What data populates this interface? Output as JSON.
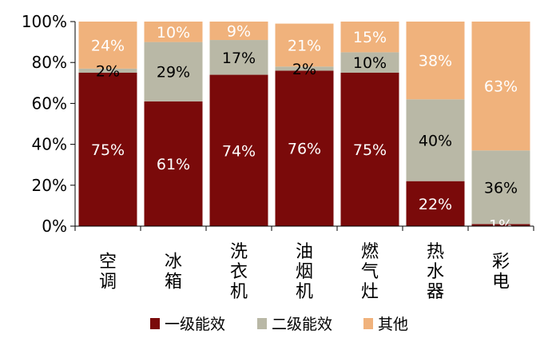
{
  "chart_data": {
    "type": "bar",
    "stacked": true,
    "categories": [
      "空调",
      "冰箱",
      "洗衣机",
      "油烟机",
      "燃气灶",
      "热水器",
      "彩电"
    ],
    "series": [
      {
        "name": "一级能效",
        "values": [
          75,
          61,
          74,
          76,
          75,
          22,
          1
        ],
        "labels": [
          "75%",
          "61%",
          "74%",
          "76%",
          "75%",
          "22%",
          "1%"
        ],
        "color": "#7a0a0a",
        "label_color": "#ffffff"
      },
      {
        "name": "二级能效",
        "values": [
          2,
          29,
          17,
          2,
          10,
          40,
          36
        ],
        "labels": [
          "2%",
          "29%",
          "17%",
          "2%",
          "10%",
          "40%",
          "36%"
        ],
        "color": "#b9b8a6",
        "label_color": "#000000"
      },
      {
        "name": "其他",
        "values": [
          24,
          10,
          9,
          21,
          15,
          38,
          63
        ],
        "labels": [
          "24%",
          "10%",
          "9%",
          "21%",
          "15%",
          "38%",
          "63%"
        ],
        "color": "#f0b27c",
        "label_color": "#ffffff"
      }
    ],
    "y_ticks": [
      "0%",
      "20%",
      "40%",
      "60%",
      "80%",
      "100%"
    ],
    "ylim": [
      0,
      100
    ],
    "grid": false,
    "legend_position": "bottom",
    "title": "",
    "xlabel": "",
    "ylabel": ""
  }
}
